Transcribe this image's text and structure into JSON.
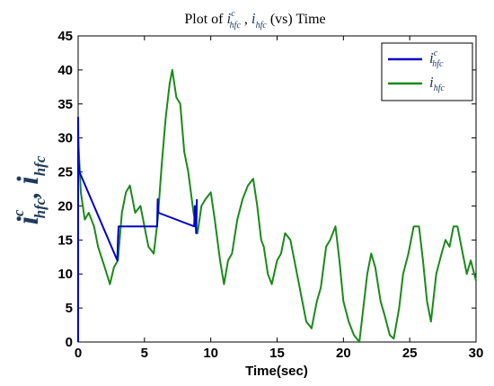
{
  "chart_data": {
    "type": "line",
    "title": {
      "prefix": "Plot of ",
      "var1": "i",
      "var1_sup": "c",
      "var1_sub": "hfc",
      "sep": " , ",
      "var2": "i",
      "var2_sub": "hfc",
      "suffix": " (vs) Time"
    },
    "xlabel": "Time(sec)",
    "ylabel": {
      "var1": "i",
      "var1_sup": "c",
      "var1_sub": "hfc",
      "sep": ", ",
      "var2": "i",
      "var2_sub": "hfc"
    },
    "xlim": [
      0,
      30
    ],
    "ylim": [
      0,
      45
    ],
    "xticks": [
      0,
      5,
      10,
      15,
      20,
      25,
      30
    ],
    "yticks": [
      0,
      5,
      10,
      15,
      20,
      25,
      30,
      35,
      40,
      45
    ],
    "grid": false,
    "legend_position": "top-right",
    "series": [
      {
        "name": "i^c_hfc",
        "legend": {
          "var": "i",
          "sup": "c",
          "sub": "hfc"
        },
        "color": "#0000cc",
        "x": [
          0,
          0,
          0.03,
          0.06,
          0.1,
          2.95,
          3.0,
          3.05,
          5.95,
          6.0,
          6.05,
          8.75,
          8.8,
          8.85,
          8.9,
          8.95
        ],
        "y": [
          0,
          33,
          27,
          26,
          25,
          12,
          15,
          17,
          17,
          21,
          19,
          17,
          20,
          18,
          16,
          21
        ]
      },
      {
        "name": "i_hfc",
        "legend": {
          "var": "i",
          "sub": "hfc"
        },
        "color": "#1a8a1a",
        "x": [
          0,
          0.2,
          0.5,
          0.8,
          1.2,
          1.5,
          2.0,
          2.4,
          2.7,
          3.0,
          3.3,
          3.6,
          3.9,
          4.3,
          4.7,
          5.0,
          5.3,
          5.7,
          6.0,
          6.3,
          6.6,
          6.9,
          7.1,
          7.4,
          7.7,
          8.0,
          8.3,
          8.7,
          9.0,
          9.3,
          9.6,
          10.0,
          10.3,
          10.7,
          11.0,
          11.3,
          11.6,
          12.0,
          12.4,
          12.8,
          13.2,
          13.5,
          13.8,
          14.0,
          14.3,
          14.6,
          15.0,
          15.3,
          15.6,
          16.0,
          16.4,
          16.8,
          17.2,
          17.6,
          18.0,
          18.3,
          18.7,
          19.0,
          19.4,
          19.7,
          20.0,
          20.4,
          20.8,
          21.2,
          21.5,
          21.8,
          22.1,
          22.4,
          22.8,
          23.1,
          23.5,
          23.8,
          24.2,
          24.5,
          24.9,
          25.3,
          25.7,
          26.0,
          26.3,
          26.6,
          27.0,
          27.4,
          27.7,
          28.0,
          28.3,
          28.6,
          29.0,
          29.3,
          29.6,
          30.0
        ],
        "y": [
          30,
          22,
          18,
          19,
          17,
          14,
          11,
          8.5,
          11,
          12,
          19,
          22,
          23,
          19,
          20,
          17,
          14,
          13,
          18,
          26,
          33,
          38,
          40,
          36,
          35,
          28,
          25,
          19,
          16,
          20,
          21,
          22,
          18,
          12,
          8.5,
          12,
          13,
          18,
          21,
          23,
          24,
          20,
          15,
          14,
          10,
          8.5,
          12,
          13,
          16,
          15,
          11,
          7,
          3,
          2,
          6,
          8,
          14,
          15,
          17,
          12,
          6,
          3,
          1,
          0,
          5,
          10,
          13,
          11,
          6,
          4,
          1,
          0.5,
          5,
          10,
          13,
          17,
          17,
          12,
          6,
          3,
          10,
          13,
          15,
          14,
          17,
          17,
          13,
          10,
          12,
          9
        ]
      }
    ]
  }
}
